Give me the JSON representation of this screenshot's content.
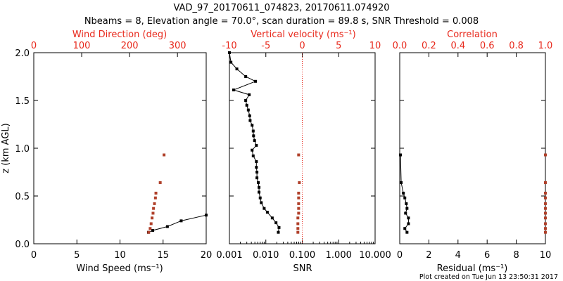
{
  "figure": {
    "title_line1": "VAD_97_20170611_074823, 20170611.074920",
    "title_line2": "Nbeams = 8, Elevation angle = 70.0°, scan duration = 89.8 s, SNR Threshold = 0.008",
    "footer": "Plot created on Tue Jun 13 23:50:31 2017",
    "colors": {
      "axis": "#000000",
      "red": "#e8291c",
      "dots": "#b0402a"
    }
  },
  "chart_data": [
    {
      "type": "line",
      "panel": "left",
      "xlabel": "Wind Speed (ms⁻¹)",
      "ylabel": "z (km AGL)",
      "xlim": [
        0,
        20
      ],
      "ylim": [
        0,
        2
      ],
      "x_ticks": [
        0,
        5,
        10,
        15,
        20
      ],
      "y_ticks": [
        0.0,
        0.5,
        1.0,
        1.5,
        2.0
      ],
      "y_tick_labels": [
        "0.0",
        "0.5",
        "1.0",
        "1.5",
        "2.0"
      ],
      "top_axis": {
        "label": "Wind Direction (deg)",
        "xlim": [
          0,
          360
        ],
        "ticks": [
          0,
          100,
          200,
          300
        ],
        "color": "red"
      },
      "series": [
        {
          "axis": "bottom",
          "color": "black",
          "points": [
            [
              13.3,
              0.12
            ],
            [
              13.8,
              0.14
            ],
            [
              15.5,
              0.18
            ],
            [
              17.1,
              0.24
            ],
            [
              20.0,
              0.3
            ]
          ]
        },
        {
          "axis": "top",
          "color": "dots",
          "points": [
            [
              240,
              0.12
            ],
            [
              243,
              0.16
            ],
            [
              245,
              0.21
            ],
            [
              247,
              0.27
            ],
            [
              249,
              0.32
            ],
            [
              250,
              0.37
            ],
            [
              252,
              0.42
            ],
            [
              254,
              0.48
            ],
            [
              255,
              0.53
            ],
            [
              264,
              0.64
            ],
            [
              272,
              0.93
            ]
          ]
        }
      ]
    },
    {
      "type": "line",
      "panel": "middle",
      "xlabel": "SNR",
      "xscale": "log",
      "xlim": [
        0.001,
        10
      ],
      "ylim": [
        0,
        2
      ],
      "x_ticks": [
        0.001,
        0.01,
        0.1,
        1,
        10
      ],
      "x_tick_labels": [
        "0.001",
        "0.010",
        "0.100",
        "1.000",
        "10.000"
      ],
      "top_axis": {
        "label": "Vertical velocity (ms⁻¹)",
        "xlim": [
          -10,
          10
        ],
        "ticks": [
          -10,
          -5,
          0,
          5,
          10
        ],
        "color": "red",
        "zero_line": true
      },
      "series": [
        {
          "axis": "bottom",
          "color": "black",
          "points": [
            [
              0.022,
              0.12
            ],
            [
              0.023,
              0.17
            ],
            [
              0.019,
              0.22
            ],
            [
              0.015,
              0.27
            ],
            [
              0.011,
              0.33
            ],
            [
              0.009,
              0.37
            ],
            [
              0.0075,
              0.43
            ],
            [
              0.007,
              0.48
            ],
            [
              0.0065,
              0.54
            ],
            [
              0.0065,
              0.59
            ],
            [
              0.0062,
              0.64
            ],
            [
              0.0057,
              0.69
            ],
            [
              0.0057,
              0.75
            ],
            [
              0.0055,
              0.8
            ],
            [
              0.0055,
              0.86
            ],
            [
              0.0045,
              0.92
            ],
            [
              0.0042,
              0.98
            ],
            [
              0.0055,
              1.03
            ],
            [
              0.0049,
              1.08
            ],
            [
              0.0046,
              1.13
            ],
            [
              0.0045,
              1.18
            ],
            [
              0.0042,
              1.24
            ],
            [
              0.0037,
              1.29
            ],
            [
              0.0036,
              1.34
            ],
            [
              0.0033,
              1.4
            ],
            [
              0.003,
              1.45
            ],
            [
              0.0028,
              1.5
            ],
            [
              0.0035,
              1.56
            ],
            [
              0.0013,
              1.61
            ],
            [
              0.0052,
              1.7
            ],
            [
              0.0028,
              1.75
            ],
            [
              0.0016,
              1.83
            ],
            [
              0.0011,
              1.9
            ],
            [
              0.001,
              2.0
            ]
          ]
        },
        {
          "axis": "top",
          "color": "dots",
          "points": [
            [
              -0.6,
              0.12
            ],
            [
              -0.6,
              0.16
            ],
            [
              -0.6,
              0.21
            ],
            [
              -0.6,
              0.27
            ],
            [
              -0.5,
              0.32
            ],
            [
              -0.5,
              0.37
            ],
            [
              -0.5,
              0.42
            ],
            [
              -0.5,
              0.48
            ],
            [
              -0.5,
              0.53
            ],
            [
              -0.4,
              0.64
            ],
            [
              -0.5,
              0.93
            ]
          ]
        }
      ]
    },
    {
      "type": "line",
      "panel": "right",
      "xlabel": "Residual (ms⁻¹)",
      "xlim": [
        0,
        10
      ],
      "ylim": [
        0,
        2
      ],
      "x_ticks": [
        0,
        2,
        4,
        6,
        8,
        10
      ],
      "top_axis": {
        "label": "Correlation",
        "xlim": [
          0,
          1
        ],
        "ticks": [
          0.0,
          0.2,
          0.4,
          0.6,
          0.8,
          1.0
        ],
        "tick_labels": [
          "0.0",
          "0.2",
          "0.4",
          "0.6",
          "0.8",
          "1.0"
        ],
        "color": "red"
      },
      "series": [
        {
          "axis": "bottom",
          "color": "black",
          "points": [
            [
              0.5,
              0.12
            ],
            [
              0.35,
              0.16
            ],
            [
              0.6,
              0.21
            ],
            [
              0.6,
              0.27
            ],
            [
              0.4,
              0.32
            ],
            [
              0.5,
              0.37
            ],
            [
              0.45,
              0.42
            ],
            [
              0.35,
              0.48
            ],
            [
              0.25,
              0.53
            ],
            [
              0.1,
              0.64
            ],
            [
              0.05,
              0.93
            ]
          ]
        },
        {
          "axis": "top",
          "color": "dots",
          "points": [
            [
              1.0,
              0.12
            ],
            [
              1.0,
              0.16
            ],
            [
              1.0,
              0.21
            ],
            [
              1.0,
              0.27
            ],
            [
              1.0,
              0.32
            ],
            [
              1.0,
              0.37
            ],
            [
              1.0,
              0.42
            ],
            [
              1.0,
              0.48
            ],
            [
              1.0,
              0.53
            ],
            [
              1.0,
              0.64
            ],
            [
              1.0,
              0.93
            ]
          ]
        }
      ]
    }
  ]
}
